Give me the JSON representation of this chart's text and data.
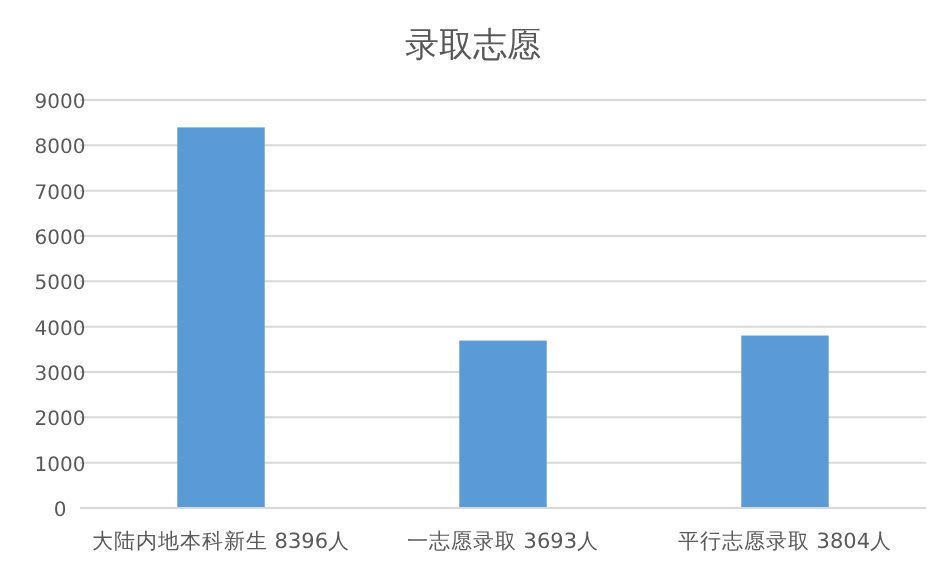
{
  "chart_data": {
    "type": "bar",
    "title": "录取志愿",
    "categories": [
      "大陆内地本科新生 8396人",
      "一志愿录取 3693人",
      "平行志愿录取 3804人"
    ],
    "values": [
      8396,
      3693,
      3804
    ],
    "color": "#5b9bd5",
    "ylim": [
      0,
      9000
    ],
    "yticks": [
      0,
      1000,
      2000,
      3000,
      4000,
      5000,
      6000,
      7000,
      8000,
      9000
    ],
    "grid": "y"
  }
}
